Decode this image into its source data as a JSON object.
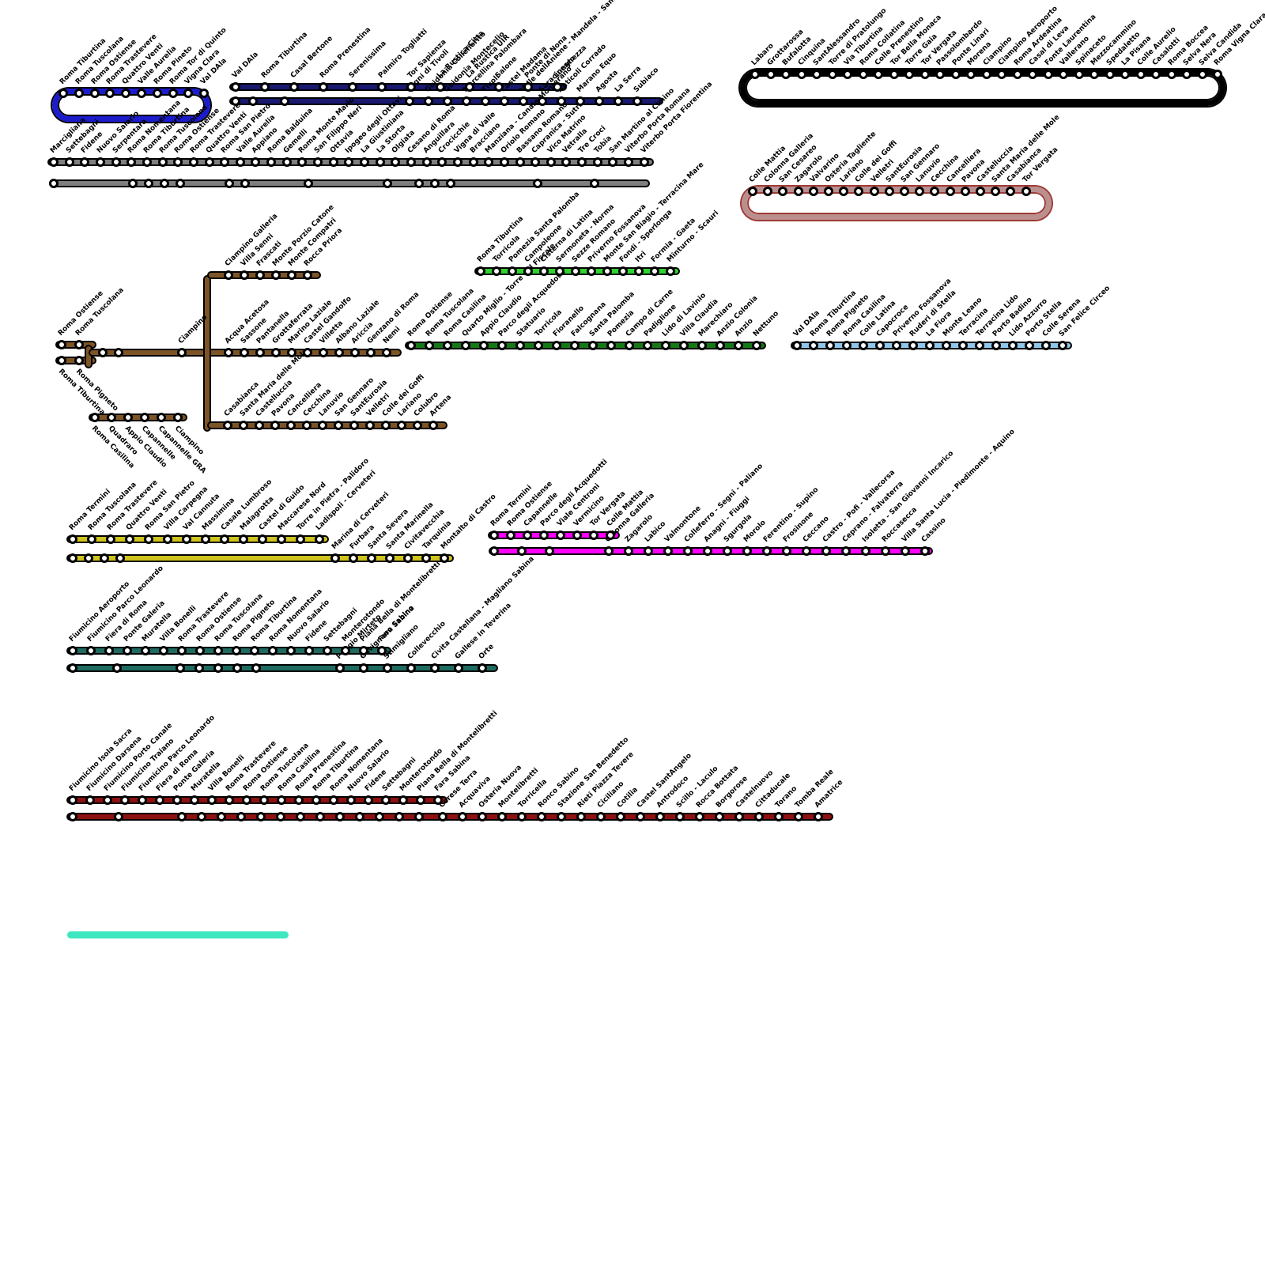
{
  "map_type": "transit-lines-diagram",
  "station_marker": {
    "fill": "#ffffff",
    "stroke": "#000000"
  },
  "label_color": "#000000",
  "lines": [
    {
      "id": "blue-ring",
      "color": "#1c1ccd",
      "stations": [
        "Roma Tiburtina",
        "Roma Tuscolana",
        "Roma Ostiense",
        "Roma Trastevere",
        "Quattro Venti",
        "Valle Aurelia",
        "Roma Pineto",
        "Roma Tor di Quinto",
        "Vigna Clara",
        "Val DAla"
      ]
    },
    {
      "id": "navy",
      "color": "#191970",
      "rows": [
        [
          "Val DAla",
          "Roma Tiburtina",
          "Casal Bertone",
          "Roma Prenestina",
          "Serenissima",
          "Palmiro Togliatti",
          "Tor Sapienza",
          "La Rustica Citta",
          "La Rustica UIR",
          "Salone",
          "Ponte di Nona",
          "Lunghezza"
        ],
        [
          "Bagni di Tivoli",
          "Guidonia Collefiorito",
          "Guidonia Montecelio",
          "Marcellina Palombara",
          "Tivoli",
          "Castel Madama",
          "Valle dellAniene - Mandela - Sambuci",
          "Saracinesco",
          "Anticoli Corrado",
          "Marano Equo",
          "Agosta",
          "La Serra",
          "Subiaco"
        ]
      ]
    },
    {
      "id": "gray",
      "color": "#7f7f7f",
      "rows": [
        [
          "Marcigliana",
          "Settebagni",
          "Fidene",
          "Nuovo Salario",
          "Serpentara",
          "Roma Nomentana",
          "Roma Tiburtina",
          "Roma Tuscolana",
          "Roma Ostiense",
          "Roma Trastevere",
          "Quattro Venti",
          "Roma San Pietro",
          "Valle Aurelia",
          "Appiano",
          "Roma Balduina",
          "Gemelli",
          "Roma Monte Mario",
          "San Filippo Neri",
          "Ottavia",
          "Ipogeo degli Ottavi",
          "La Giustiniana",
          "La Storta",
          "Olgiata",
          "Cesano di Roma",
          "Anguillara",
          "Crocicchie",
          "Vigna di Valle",
          "Bracciano",
          "Manziana - Canale Monterano",
          "Oriolo Romano",
          "Bassano Romano",
          "Capranica - Sutri",
          "Vico Matrino",
          "Vetralla",
          "Tre Croci",
          "Tobia",
          "San Martino al Cimino",
          "Viterbo Porta Romana",
          "Viterbo Porta Fiorentina"
        ]
      ]
    },
    {
      "id": "black-ring",
      "color": "#000000",
      "stations": [
        "Labaro",
        "Grottarossa",
        "Bufalotta",
        "Cinquina",
        "SantAlessandro",
        "Torre di Pratolungo",
        "Via Tiburtina",
        "Roma Collatina",
        "Colle Prenestino",
        "Tor Bella Monaca",
        "Torre Gaia",
        "Tor Vergata",
        "Passolombardo",
        "Ponte Linari",
        "Morena",
        "Ciampino",
        "Ciampino Aeroporto",
        "Roma Ardeatina",
        "Casal di Leva",
        "Fonte Laurentina",
        "Vallerano",
        "Spinaceto",
        "Mezzocammino",
        "Spedaletto",
        "La Pisana",
        "Colle Aurelio",
        "Casalotti",
        "Roma Boccea",
        "Selva Nera",
        "Selva Candida",
        "Roma Vigna Clara"
      ]
    },
    {
      "id": "rosybrown-ring",
      "color": "#bc8f8f",
      "outline": "#9d3a34",
      "stations": [
        "Colle Mattia",
        "Colonna Galleria",
        "San Cesareo",
        "Zagarolo",
        "Valvarino",
        "Osteria Tagliente",
        "Lariano",
        "Colle dei Goffi",
        "Velletri",
        "SantEurosia",
        "San Gennaro",
        "Lanuvio",
        "Cecchina",
        "Cancelliera",
        "Pavona",
        "Castelluccia",
        "Santa Maria delle Mole",
        "Casabianca",
        "Tor Vergata"
      ]
    },
    {
      "id": "green",
      "color": "#2ed32e",
      "stations": [
        "Roma Tiburtina",
        "Torricola",
        "Pomezia Santa Palomba",
        "Campoleone",
        "Cisterna di Latina",
        "Sermoneta - Norma",
        "Sezze Romano",
        "Priverno Fossanova",
        "Monte San Biagio - Terracina Mare",
        "Fondi - Sperlonga",
        "Itri",
        "Formia - Gaeta",
        "Minturno - Scauri"
      ]
    },
    {
      "id": "dark-green",
      "color": "#157a15",
      "stations": [
        "Roma Ostiense",
        "Roma Tuscolana",
        "Roma Casilina",
        "Quarto Miglio - Torre del Fiscale",
        "Appio Claudio",
        "Parco degli Acquedotti",
        "Statuario",
        "Torricola",
        "Fioranello",
        "Falcognana",
        "Santa Palomba",
        "Pomezia",
        "Campo di Carne",
        "Padiglione",
        "Lido di Lavinio",
        "Villa Claudia",
        "Marechiaro",
        "Anzio Colonia",
        "Anzio",
        "Nettuno"
      ]
    },
    {
      "id": "light-blue",
      "color": "#8fc7ea",
      "stations": [
        "Val DAla",
        "Roma Tiburtina",
        "Roma Pigneto",
        "Roma Casilina",
        "Colle Latina",
        "Capocroce",
        "Priverno Fossanova",
        "Ruderi di Stella",
        "La Fiora",
        "Monte Leano",
        "Terracina",
        "Terracina Lido",
        "Porto Badino",
        "Lido Azzurro",
        "Porto Stella",
        "Colle Serena",
        "San Felice Circeo"
      ]
    },
    {
      "id": "brown",
      "color": "#7d5426",
      "fork_top": [
        "Roma Ostiense",
        "Roma Tuscolana"
      ],
      "fork_bottom": [
        "Roma Tiburtina",
        "Roma Pigneto"
      ],
      "trunk_junction": [
        "Ciampino"
      ],
      "trunk": [
        "Acqua Acetosa",
        "Sassone",
        "Pantanella",
        "Grottaferrata",
        "Marino Laziale",
        "Castel Gandolfo",
        "Villetta",
        "Albano Laziale",
        "Ariccia",
        "Genzano di Roma",
        "Nemi"
      ],
      "frascati_branch": [
        "Ciampino Galleria",
        "Villa Senni",
        "Frascati",
        "Monte Porzio Catone",
        "Monte Compatri",
        "Rocca Priora"
      ],
      "velletri_branch": [
        "Casabianca",
        "Santa Maria delle Mole",
        "Castelluccia",
        "Pavona",
        "Cancelliera",
        "Cecchina",
        "Lanuvio",
        "San Gennaro",
        "SantEurosia",
        "Velletri",
        "Colle dei Goffi",
        "Lariano",
        "Colubro",
        "Artena"
      ],
      "casilina_branch": [
        "Roma Casilina",
        "Quadraro",
        "Appio Claudio",
        "Capannelle",
        "Capannelle GRA",
        "Ciampino"
      ]
    },
    {
      "id": "yellow",
      "color": "#cfc31d",
      "rows": [
        [
          "Roma Termini",
          "Roma Tuscolana",
          "Roma Trastevere",
          "Quattro Venti",
          "Roma San Pietro",
          "Villa Carpegna",
          "Val Cannuta",
          "Massimina",
          "Casale Lumbroso",
          "Malagrotta",
          "Castel di Guido",
          "Maccarese Nord",
          "Torre in Pietra - Palidoro",
          "Ladispoli - Cerveteri"
        ],
        [
          "Marina di Cerveteri",
          "Furbara",
          "Santa Severa",
          "Santa Marinella",
          "Civitavecchia",
          "Tarquinia",
          "Montalto di Castro"
        ]
      ]
    },
    {
      "id": "magenta",
      "color": "#ff00ff",
      "rows": [
        [
          "Roma Termini",
          "Roma Ostiense",
          "Capannelle",
          "Parco degli Acquedotti",
          "Viale Centroni",
          "Vermicino",
          "Tor Vergata",
          "Colle Mattia"
        ],
        [
          "Colonna Galleria",
          "Zagarolo",
          "Labico",
          "Valmontone",
          "Colleferro - Segni - Paliano",
          "Anagni - Fiuggi",
          "Sgurgola",
          "Morolo",
          "Ferentino - Supino",
          "Frosinone",
          "Ceccano",
          "Castro - Pofi - Vallecorsa",
          "Ceprano - Falvaterra",
          "Isoletta - San Giovanni Incarico",
          "Roccasecca",
          "Villa Santa Lucia - Piedimonte - Aquino",
          "Cassino"
        ]
      ]
    },
    {
      "id": "teal",
      "color": "#1f6b60",
      "rows": [
        [
          "Fiumicino Aeroporto",
          "Fiumicino Parco Leonardo",
          "Fiera di Roma",
          "Ponte Galeria",
          "Muratella",
          "Villa Bonelli",
          "Roma Trastevere",
          "Roma Ostiense",
          "Roma Tuscolana",
          "Roma Pigneto",
          "Roma Tiburtina",
          "Roma Nomentana",
          "Nuovo Salario",
          "Fidene",
          "Settebagni",
          "Monterotondo",
          "Piana Bella di Montelibretti",
          "Fara Sabina"
        ],
        [
          "Poggio Mirteto",
          "Gavignano Sabino",
          "Stimigliano",
          "Collevecchio",
          "Civita Castellana - Magliano Sabina",
          "Gallese in Teverina",
          "Orte"
        ]
      ]
    },
    {
      "id": "dark-red",
      "color": "#8e1111",
      "rows": [
        [
          "Fiumicino Isola Sacra",
          "Fiumicino Darsena",
          "Fiumicino Porto Canale",
          "Fiumicino Traiano",
          "Fiumicino Parco Leonardo",
          "Fiera di Roma",
          "Ponte Galeria",
          "Muratella",
          "Villa Bonelli",
          "Roma Trastevere",
          "Roma Ostiense",
          "Roma Tuscolana",
          "Roma Casilina",
          "Roma Prenestina",
          "Roma Tiburtina",
          "Roma Nomentana",
          "Nuovo Salario",
          "Fidene",
          "Settebagni",
          "Monterotondo",
          "Piana Bella di Montelibretti",
          "Fara Sabina"
        ],
        [
          "Corese Terra",
          "Acquaviva",
          "Osteria Nuova",
          "Montelibretti",
          "Torricella",
          "Ronco Sabino",
          "Stazione San Benedetto",
          "Rieti Piazza Tevere",
          "Ciciliano",
          "Cotilia",
          "Castel SantAngelo",
          "Antrodoco",
          "Scillo - Laculo",
          "Rocca Bottata",
          "Borgorose",
          "Castelnuovo",
          "Cittaducale",
          "Torano",
          "Tomba Reale",
          "Amatrice"
        ]
      ]
    },
    {
      "id": "cyan",
      "color": "#3de8c0"
    }
  ]
}
